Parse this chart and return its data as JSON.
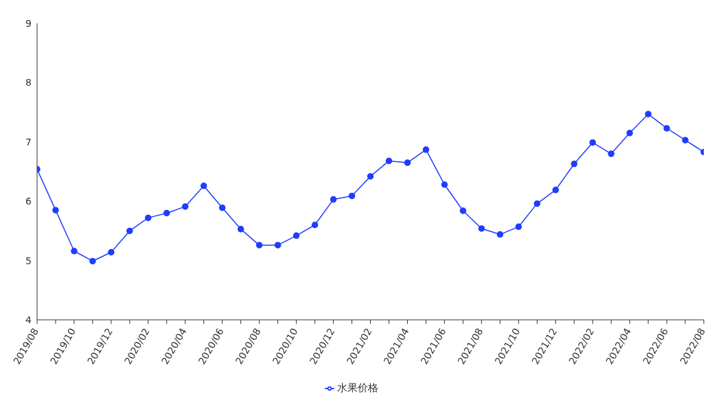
{
  "chart_data": {
    "type": "line",
    "categories": [
      "2019/08",
      null,
      "2019/10",
      null,
      "2019/12",
      null,
      "2020/02",
      null,
      "2020/04",
      null,
      "2020/06",
      null,
      "2020/08",
      null,
      "2020/10",
      null,
      "2020/12",
      null,
      "2021/02",
      null,
      "2021/04",
      null,
      "2021/06",
      null,
      "2021/08",
      null,
      "2021/10",
      null,
      "2021/12",
      null,
      "2022/02",
      null,
      "2022/04",
      null,
      "2022/06",
      null,
      "2022/08"
    ],
    "series": [
      {
        "name": "水果价格",
        "color": "#1f3cff",
        "values": [
          6.54,
          5.85,
          5.16,
          4.99,
          5.14,
          5.5,
          5.72,
          5.8,
          5.91,
          6.26,
          5.89,
          5.53,
          5.26,
          5.26,
          5.42,
          5.6,
          6.03,
          6.09,
          6.42,
          6.68,
          6.65,
          6.87,
          6.28,
          5.84,
          5.54,
          5.44,
          5.57,
          5.96,
          6.19,
          6.63,
          6.99,
          6.8,
          7.15,
          7.47,
          7.23,
          7.03,
          6.83
        ]
      }
    ],
    "ylim": [
      4,
      9
    ],
    "yticks": [
      4,
      5,
      6,
      7,
      8,
      9
    ],
    "grid": false,
    "legend": "bottom",
    "marker": "circle",
    "line_style": "solid"
  }
}
